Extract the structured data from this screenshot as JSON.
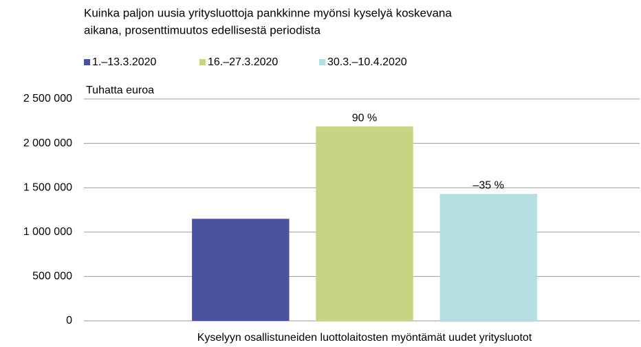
{
  "chart_data": {
    "type": "bar",
    "title": [
      "Kuinka paljon uusia yritysluottoja pankkinne myönsi kyselyä koskevana",
      "aikana, prosenttimuutos edellisestä periodista"
    ],
    "y_label": "Tuhatta euroa",
    "categories": [
      "Kyselyyn osallistuneiden luottolaitosten myöntämät uudet yritysluotot"
    ],
    "series": [
      {
        "name": "1.–13.3.2020",
        "color": "#4a529f",
        "values": [
          1150000
        ]
      },
      {
        "name": "16.–27.3.2020",
        "color": "#c8d383",
        "values": [
          2190000
        ],
        "annotation": "90 %"
      },
      {
        "name": "30.3.–10.4.2020",
        "color": "#b5dde2",
        "values": [
          1430000
        ],
        "annotation": "–35 %"
      }
    ],
    "ylim": [
      0,
      2500000
    ],
    "yticks": [
      0,
      {
        "value": 500000,
        "label": "500 000"
      },
      {
        "value": 1000000,
        "label": "1 000 000"
      },
      {
        "value": 1500000,
        "label": "1 500 000"
      },
      {
        "value": 2000000,
        "label": "2 000 000"
      },
      {
        "value": 2500000,
        "label": "2 500 000"
      }
    ],
    "grid": true
  }
}
